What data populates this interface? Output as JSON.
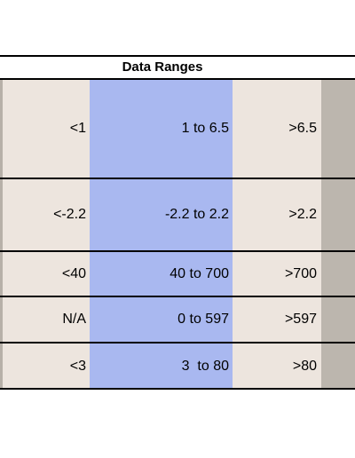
{
  "header": {
    "title": "Data Ranges"
  },
  "table": {
    "rows": [
      [
        "<1",
        "1 to 6.5",
        ">6.5"
      ],
      [
        "<-2.2",
        "-2.2 to 2.2",
        ">2.2"
      ],
      [
        "<40",
        "40 to 700",
        ">700"
      ],
      [
        "N/A",
        "0 to 597",
        ">597"
      ],
      [
        "<3",
        "3  to 80",
        ">80"
      ]
    ]
  }
}
